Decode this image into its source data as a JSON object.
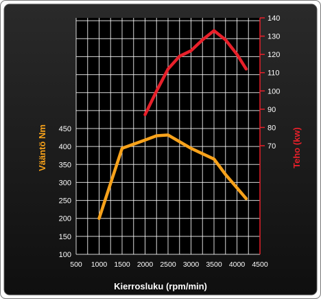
{
  "chart_data": {
    "type": "line",
    "title": "",
    "xlabel": "Kierrosluku (rpm/min)",
    "xlim": [
      500,
      4500
    ],
    "x_ticks": [
      500,
      1000,
      1500,
      2000,
      2500,
      3000,
      3500,
      4000,
      4500
    ],
    "y_left": {
      "label": "Vääntö Nm",
      "lim": [
        100,
        450
      ],
      "ticks": [
        100,
        150,
        200,
        250,
        300,
        350,
        400,
        450
      ]
    },
    "y_right": {
      "label": "Teho (kw)",
      "lim": [
        70,
        140
      ],
      "ticks": [
        70,
        80,
        90,
        100,
        110,
        120,
        130,
        140
      ]
    },
    "grid": true,
    "colors": {
      "torque": "#f7a21b",
      "power": "#e8202a",
      "background": "#1a1a1a",
      "plot_area": "#000000",
      "grid": "#ffffff"
    },
    "series": [
      {
        "name": "Vääntö Nm",
        "axis": "left",
        "x": [
          1000,
          1500,
          2000,
          2250,
          2500,
          3000,
          3500,
          3750,
          4000,
          4200
        ],
        "values": [
          200,
          395,
          418,
          430,
          432,
          395,
          365,
          322,
          285,
          255
        ]
      },
      {
        "name": "Teho (kw)",
        "axis": "right",
        "x": [
          2000,
          2250,
          2500,
          2750,
          3000,
          3250,
          3500,
          3750,
          4000,
          4200
        ],
        "values": [
          87,
          100,
          112,
          119,
          122,
          128,
          133,
          128,
          120,
          112
        ]
      }
    ]
  }
}
